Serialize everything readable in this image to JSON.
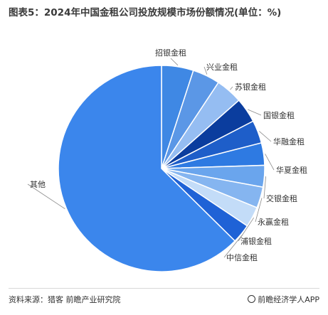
{
  "title": "图表5：2024年中国金租公司投放规模市场份额情况(单位：%)",
  "chart_data": {
    "type": "pie",
    "title": "图表5：2024年中国金租公司投放规模市场份额情况(单位：%)",
    "unit": "%",
    "slices": [
      {
        "label": "招银金租",
        "value": 5.0,
        "color": "#3f88e4"
      },
      {
        "label": "兴业金租",
        "value": 4.3,
        "color": "#5b97e6"
      },
      {
        "label": "苏银金租",
        "value": 4.2,
        "color": "#95bdf2"
      },
      {
        "label": "国银金租",
        "value": 3.9,
        "color": "#0b3d9e"
      },
      {
        "label": "华融金租",
        "value": 3.6,
        "color": "#1e5ec9"
      },
      {
        "label": "华夏金租",
        "value": 3.5,
        "color": "#2e7ae2"
      },
      {
        "label": "交银金租",
        "value": 3.4,
        "color": "#6aa5ed"
      },
      {
        "label": "永赢金租",
        "value": 3.3,
        "color": "#85b5f0"
      },
      {
        "label": "浦银金租",
        "value": 3.2,
        "color": "#c3dcf8"
      },
      {
        "label": "中信金租",
        "value": 3.0,
        "color": "#1f62d6"
      },
      {
        "label": "其他",
        "value": 62.6,
        "color": "#3b86ec"
      }
    ],
    "legend": "none",
    "labels": "outside-with-leader-lines"
  },
  "footer": {
    "source": "资料来源：猎客 前瞻产业研究院",
    "brand": "前瞻经济学人APP"
  }
}
